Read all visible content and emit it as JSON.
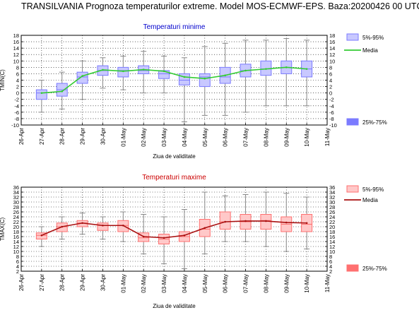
{
  "page": {
    "title": "TRANSILVANIA  Prognoza temperaturilor extreme.  Model MOS-ECMWF-EPS. Baza:20200426 00 UTC"
  },
  "colors": {
    "min_box": "#7b7bff",
    "min_box_light": "#c8c8ff",
    "min_line": "#33cc33",
    "min_title": "#0000cc",
    "max_box": "#ff7070",
    "max_box_light": "#ffc8c8",
    "max_line": "#aa1111",
    "max_title": "#cc0000",
    "whisker": "#888888"
  },
  "chart_data": [
    {
      "type": "boxplot",
      "title": "Temperaturi minime",
      "ylabel": "TMIN(C)",
      "xlabel": "Ziua de validitate",
      "x_ticks": [
        "26-Apr",
        "27-Apr",
        "28-Apr",
        "29-Apr",
        "30-Apr",
        "01-May",
        "02-May",
        "03-May",
        "04-May",
        "05-May",
        "06-May",
        "07-May",
        "08-May",
        "09-May",
        "10-May",
        "11-May"
      ],
      "ylim": [
        -10,
        18
      ],
      "y_ticks": [
        -10,
        -8,
        -6,
        -4,
        -2,
        0,
        2,
        4,
        6,
        8,
        10,
        12,
        14,
        16,
        18
      ],
      "grid": true,
      "legend": [
        {
          "label": "5%-95%",
          "kind": "light-box"
        },
        {
          "label": "Media",
          "kind": "line"
        },
        {
          "label": "25%-75%",
          "kind": "dark-box"
        }
      ],
      "boxes": [
        {
          "date": "27-Apr",
          "p5": -6,
          "p25": -2,
          "median": 0,
          "p75": 1,
          "p95": 4,
          "mean": 0
        },
        {
          "date": "28-Apr",
          "p5": -5,
          "p25": -1,
          "median": 1,
          "p75": 3,
          "p95": 6.5,
          "mean": 0.5
        },
        {
          "date": "29-Apr",
          "p5": -2,
          "p25": 3,
          "median": 5,
          "p75": 6.5,
          "p95": 10,
          "mean": 5.3
        },
        {
          "date": "30-Apr",
          "p5": 1.5,
          "p25": 5.5,
          "median": 7,
          "p75": 8.5,
          "p95": 11,
          "mean": 7.2
        },
        {
          "date": "01-May",
          "p5": 1,
          "p25": 5,
          "median": 7,
          "p75": 8,
          "p95": 11.5,
          "mean": 6.8
        },
        {
          "date": "02-May",
          "p5": 0,
          "p25": 6,
          "median": 7,
          "p75": 8.5,
          "p95": 13,
          "mean": 7.3
        },
        {
          "date": "03-May",
          "p5": 0,
          "p25": 4.5,
          "median": 6,
          "p75": 7,
          "p95": 11.5,
          "mean": 6.8
        },
        {
          "date": "04-May",
          "p5": -9,
          "p25": 2.5,
          "median": 4,
          "p75": 6,
          "p95": 11,
          "mean": 5
        },
        {
          "date": "05-May",
          "p5": -7,
          "p25": 2,
          "median": 5,
          "p75": 6,
          "p95": 14.5,
          "mean": 4.5
        },
        {
          "date": "06-May",
          "p5": -7,
          "p25": 3,
          "median": 5,
          "p75": 8,
          "p95": 15.5,
          "mean": 5.5
        },
        {
          "date": "07-May",
          "p5": -6,
          "p25": 5,
          "median": 7,
          "p75": 9,
          "p95": 16.5,
          "mean": 7
        },
        {
          "date": "08-May",
          "p5": -4,
          "p25": 5.5,
          "median": 7.5,
          "p75": 10,
          "p95": 16.5,
          "mean": 7.5
        },
        {
          "date": "09-May",
          "p5": -4,
          "p25": 6,
          "median": 8,
          "p75": 10,
          "p95": 17,
          "mean": 8
        },
        {
          "date": "10-May",
          "p5": -4,
          "p25": 5,
          "median": 7.5,
          "p75": 10,
          "p95": 16.5,
          "mean": 7.5
        }
      ]
    },
    {
      "type": "boxplot",
      "title": "Temperaturi maxime",
      "ylabel": "TMAX(C)",
      "xlabel": "Ziua de validitate",
      "x_ticks": [
        "26-Apr",
        "27-Apr",
        "28-Apr",
        "29-Apr",
        "30-Apr",
        "01-May",
        "02-May",
        "03-May",
        "04-May",
        "05-May",
        "06-May",
        "07-May",
        "08-May",
        "09-May",
        "10-May",
        "11-May"
      ],
      "ylim": [
        2,
        36
      ],
      "y_ticks": [
        2,
        4,
        6,
        8,
        10,
        12,
        14,
        16,
        18,
        20,
        22,
        24,
        26,
        28,
        30,
        32,
        34,
        36
      ],
      "grid": true,
      "legend": [
        {
          "label": "5%-95%",
          "kind": "light-box"
        },
        {
          "label": "Media",
          "kind": "line"
        },
        {
          "label": "25%-75%",
          "kind": "dark-box"
        }
      ],
      "boxes": [
        {
          "date": "27-Apr",
          "p5": 12,
          "p25": 15,
          "median": 16.5,
          "p75": 17.5,
          "p95": 20,
          "mean": 16.5
        },
        {
          "date": "28-Apr",
          "p5": 15,
          "p25": 18,
          "median": 20,
          "p75": 21.5,
          "p95": 24,
          "mean": 20
        },
        {
          "date": "29-Apr",
          "p5": 17,
          "p25": 20,
          "median": 21.5,
          "p75": 22.5,
          "p95": 25.5,
          "mean": 21.5
        },
        {
          "date": "30-Apr",
          "p5": 15,
          "p25": 18.5,
          "median": 20.5,
          "p75": 21.5,
          "p95": 24,
          "mean": 20.5
        },
        {
          "date": "01-May",
          "p5": 14,
          "p25": 18,
          "median": 20.5,
          "p75": 22.5,
          "p95": 26,
          "mean": 20.5
        },
        {
          "date": "02-May",
          "p5": 9,
          "p25": 14,
          "median": 15.5,
          "p75": 17.5,
          "p95": 25,
          "mean": 16
        },
        {
          "date": "03-May",
          "p5": 5,
          "p25": 13,
          "median": 15,
          "p75": 17,
          "p95": 24,
          "mean": 15.5
        },
        {
          "date": "04-May",
          "p5": 3,
          "p25": 14,
          "median": 16,
          "p75": 18,
          "p95": 27,
          "mean": 16.5
        },
        {
          "date": "05-May",
          "p5": 9,
          "p25": 16,
          "median": 19,
          "p75": 23,
          "p95": 34,
          "mean": 19.5
        },
        {
          "date": "06-May",
          "p5": 14,
          "p25": 19,
          "median": 22,
          "p75": 26,
          "p95": 32.5,
          "mean": 22
        },
        {
          "date": "07-May",
          "p5": 14,
          "p25": 19,
          "median": 22,
          "p75": 25,
          "p95": 33,
          "mean": 22.3
        },
        {
          "date": "08-May",
          "p5": 12,
          "p25": 19,
          "median": 22.5,
          "p75": 25,
          "p95": 34,
          "mean": 22.3
        },
        {
          "date": "09-May",
          "p5": 10,
          "p25": 18,
          "median": 21,
          "p75": 24,
          "p95": 33.5,
          "mean": 21.7
        },
        {
          "date": "10-May",
          "p5": 11,
          "p25": 18,
          "median": 21,
          "p75": 25,
          "p95": 32,
          "mean": 21.5
        }
      ]
    }
  ]
}
